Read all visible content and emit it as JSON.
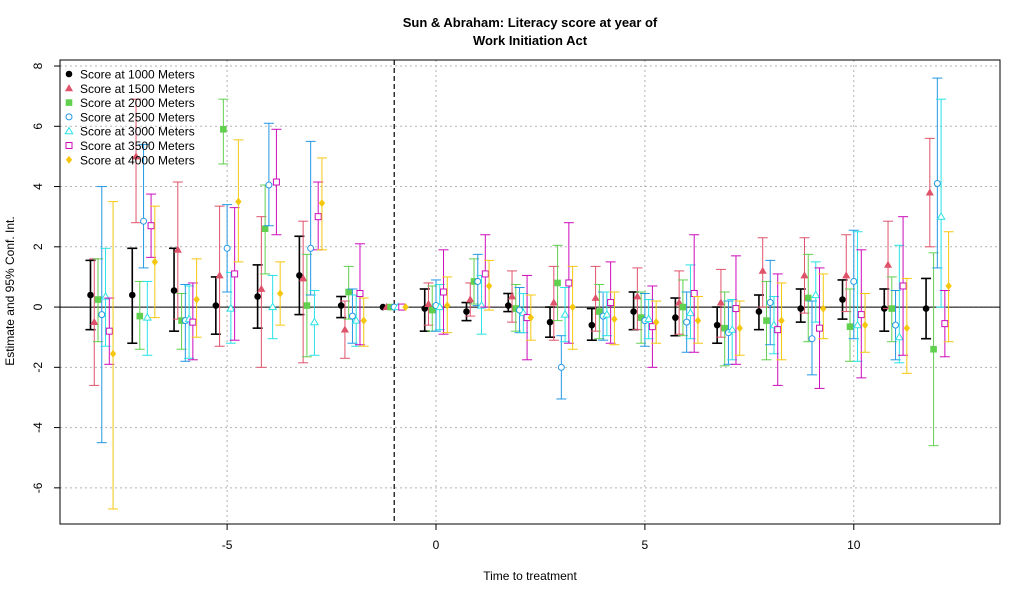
{
  "chart_data": {
    "type": "scatter",
    "title_line1": "Sun & Abraham: Literacy score at year of",
    "title_line2": "Work Initiation Act",
    "xlabel": "Time to treatment",
    "ylabel": "Estimate and 95% Conf. Int.",
    "xlim": [
      -9,
      13.5
    ],
    "ylim": [
      -7.2,
      8.2
    ],
    "x_ticks": [
      -5,
      0,
      5,
      10
    ],
    "x_tick_labels": [
      "-5",
      "0",
      "5",
      "10"
    ],
    "y_ticks": [
      -6,
      -4,
      -2,
      0,
      2,
      4,
      6,
      8
    ],
    "y_tick_labels": [
      "-6",
      "-4",
      "-2",
      "0",
      "2",
      "4",
      "6",
      "8"
    ],
    "reference_vline": -1,
    "reference_hline": 0,
    "grid": true,
    "legend_position": "top-left",
    "series": [
      {
        "name": "Score at 1000 Meters",
        "color": "#000000",
        "marker": "circle-filled",
        "x": [
          -8,
          -7,
          -6,
          -5,
          -4,
          -3,
          -2,
          -1,
          0,
          1,
          2,
          3,
          4,
          5,
          6,
          7,
          8,
          9,
          10,
          11,
          12
        ],
        "y": [
          0.4,
          0.4,
          0.55,
          0.05,
          0.35,
          1.05,
          0.05,
          0,
          -0.05,
          -0.15,
          0.05,
          -0.5,
          -0.6,
          -0.15,
          -0.35,
          -0.6,
          -0.15,
          -0.05,
          0.25,
          -0.05,
          -0.05
        ],
        "lo": [
          -0.75,
          -1.2,
          -0.8,
          -0.9,
          -0.7,
          -0.25,
          -0.35,
          0,
          -0.8,
          -0.45,
          -0.15,
          -1.0,
          -1.1,
          -0.75,
          -0.95,
          -1.2,
          -0.75,
          -0.5,
          -0.4,
          -0.8,
          -1.05
        ],
        "hi": [
          1.55,
          1.95,
          1.95,
          1.0,
          1.4,
          2.35,
          0.35,
          0,
          0.6,
          0.15,
          0.45,
          0.0,
          -0.05,
          0.5,
          0.3,
          0.0,
          0.4,
          0.6,
          0.9,
          0.6,
          0.95
        ]
      },
      {
        "name": "Score at 1500 Meters",
        "color": "#df536b",
        "marker": "triangle-filled",
        "x": [
          -8,
          -7,
          -6,
          -5,
          -4,
          -3,
          -2,
          -1,
          0,
          1,
          2,
          3,
          4,
          5,
          6,
          7,
          8,
          9,
          10,
          11,
          12
        ],
        "y": [
          -0.5,
          5.0,
          1.9,
          1.05,
          0.6,
          0.95,
          -0.75,
          0,
          0.1,
          0.25,
          0.35,
          0.15,
          0.3,
          0.35,
          0.15,
          0.15,
          1.2,
          1.05,
          1.05,
          1.4,
          3.8
        ],
        "lo": [
          -2.6,
          2.8,
          -0.4,
          -1.3,
          -2.0,
          -1.85,
          -1.7,
          0,
          -0.6,
          -0.3,
          -0.5,
          -1.1,
          -0.8,
          -0.75,
          -0.9,
          -1.0,
          0.0,
          -0.2,
          -0.15,
          -0.05,
          2.0
        ],
        "hi": [
          1.6,
          6.9,
          4.15,
          3.35,
          3.0,
          2.85,
          0.2,
          0,
          0.8,
          0.8,
          1.2,
          1.35,
          1.35,
          1.3,
          1.2,
          1.25,
          2.3,
          2.3,
          2.4,
          2.85,
          5.6
        ]
      },
      {
        "name": "Score at 2000 Meters",
        "color": "#61d04f",
        "marker": "square-filled",
        "x": [
          -8,
          -7,
          -6,
          -5,
          -4,
          -3,
          -2,
          -1,
          0,
          1,
          2,
          3,
          4,
          5,
          6,
          7,
          8,
          9,
          10,
          11,
          12
        ],
        "y": [
          0.25,
          -0.3,
          -0.45,
          5.9,
          2.6,
          0.05,
          0.5,
          0,
          -0.1,
          0.85,
          -0.05,
          0.8,
          -0.15,
          -0.35,
          0.0,
          -0.7,
          -0.45,
          0.3,
          -0.65,
          -0.05,
          -1.4
        ],
        "lo": [
          -1.15,
          -1.4,
          -1.4,
          4.75,
          1.1,
          -1.65,
          -0.4,
          0,
          -0.8,
          0.1,
          -0.8,
          -0.45,
          -1.05,
          -1.2,
          -0.95,
          -1.95,
          -1.75,
          -1.15,
          -1.8,
          -1.15,
          -4.6
        ],
        "hi": [
          1.6,
          0.85,
          0.45,
          6.9,
          4.05,
          1.75,
          1.35,
          0,
          0.7,
          1.6,
          0.75,
          2.05,
          0.75,
          0.5,
          0.9,
          0.5,
          0.85,
          1.75,
          0.6,
          1.0,
          1.8
        ]
      },
      {
        "name": "Score at 2500 Meters",
        "color": "#2297e6",
        "marker": "circle-open",
        "x": [
          -8,
          -7,
          -6,
          -5,
          -4,
          -3,
          -2,
          -1,
          0,
          1,
          2,
          3,
          4,
          5,
          6,
          7,
          8,
          9,
          10,
          11,
          12
        ],
        "y": [
          -0.25,
          2.85,
          -0.45,
          1.95,
          4.05,
          1.95,
          -0.3,
          0,
          0.05,
          0.85,
          -0.1,
          -2.0,
          -0.3,
          -0.45,
          -0.5,
          -0.85,
          0.15,
          -1.05,
          0.85,
          -0.6,
          4.1
        ],
        "lo": [
          -4.5,
          1.3,
          -1.8,
          0.5,
          2.7,
          0.4,
          -1.2,
          0,
          -0.8,
          0.05,
          -0.85,
          -3.05,
          -1.1,
          -1.3,
          -1.5,
          -1.9,
          -1.25,
          -2.25,
          -1.05,
          -1.75,
          1.3
        ],
        "hi": [
          4.0,
          5.4,
          0.75,
          3.4,
          6.1,
          5.5,
          0.6,
          0,
          0.9,
          1.75,
          0.65,
          -0.95,
          0.5,
          0.45,
          0.5,
          0.2,
          1.55,
          0.2,
          2.55,
          0.55,
          7.6
        ]
      },
      {
        "name": "Score at 3000 Meters",
        "color": "#28e2e5",
        "marker": "triangle-open",
        "x": [
          -8,
          -7,
          -6,
          -5,
          -4,
          -3,
          -2,
          -1,
          0,
          1,
          2,
          3,
          4,
          5,
          6,
          7,
          8,
          9,
          10,
          11,
          12
        ],
        "y": [
          0.35,
          -0.35,
          -0.4,
          -0.05,
          0.0,
          -0.5,
          -0.45,
          0,
          0.0,
          0.05,
          -0.2,
          -0.25,
          -0.25,
          -0.4,
          -0.2,
          -0.75,
          -0.6,
          0.4,
          -0.6,
          -1.0,
          3.0
        ],
        "lo": [
          -1.3,
          -1.6,
          -1.7,
          -1.2,
          -1.05,
          -1.6,
          -1.3,
          0,
          -0.75,
          -0.9,
          -0.85,
          -1.15,
          -0.95,
          -1.05,
          -1.05,
          -1.75,
          -1.55,
          -0.5,
          -1.8,
          -1.85,
          0.0
        ],
        "hi": [
          1.95,
          0.85,
          0.7,
          1.15,
          1.05,
          0.55,
          0.4,
          0,
          0.75,
          1.05,
          0.45,
          0.65,
          0.5,
          0.25,
          1.4,
          0.25,
          0.35,
          1.5,
          2.5,
          2.05,
          6.9
        ]
      },
      {
        "name": "Score at 3500 Meters",
        "color": "#cd0bbc",
        "marker": "square-open",
        "x": [
          -8,
          -7,
          -6,
          -5,
          -4,
          -3,
          -2,
          -1,
          0,
          1,
          2,
          3,
          4,
          5,
          6,
          7,
          8,
          9,
          10,
          11,
          12
        ],
        "y": [
          -0.8,
          2.7,
          -0.5,
          1.1,
          4.15,
          3.0,
          0.45,
          0,
          0.5,
          1.1,
          -0.35,
          0.8,
          0.15,
          -0.65,
          0.45,
          -0.05,
          -0.75,
          -0.7,
          -0.25,
          0.7,
          -0.55
        ],
        "lo": [
          -1.9,
          1.65,
          -1.75,
          -1.1,
          2.4,
          1.9,
          -1.25,
          0,
          -0.9,
          0.0,
          -1.75,
          -1.2,
          -1.2,
          -2.0,
          -1.5,
          -1.9,
          -2.6,
          -2.7,
          -2.35,
          -1.6,
          -1.65
        ],
        "hi": [
          0.3,
          3.75,
          0.8,
          3.3,
          5.9,
          4.15,
          2.1,
          0,
          1.9,
          2.4,
          1.05,
          2.8,
          1.5,
          0.7,
          2.4,
          1.7,
          1.1,
          1.3,
          1.9,
          3.0,
          0.55
        ]
      },
      {
        "name": "Score at 4000 Meters",
        "color": "#f5c710",
        "marker": "diamond-filled",
        "x": [
          -8,
          -7,
          -6,
          -5,
          -4,
          -3,
          -2,
          -1,
          0,
          1,
          2,
          3,
          4,
          5,
          6,
          7,
          8,
          9,
          10,
          11,
          12
        ],
        "y": [
          -1.55,
          1.5,
          0.25,
          3.5,
          0.45,
          3.45,
          -0.45,
          0,
          0.05,
          0.7,
          -0.35,
          0.0,
          -0.4,
          -0.5,
          -0.45,
          -0.7,
          -0.45,
          -0.05,
          -0.6,
          -0.7,
          0.7
        ],
        "lo": [
          -6.7,
          -0.35,
          -1.0,
          1.5,
          -0.6,
          1.9,
          -1.3,
          0,
          -0.85,
          -0.1,
          -1.1,
          -1.4,
          -1.25,
          -1.2,
          -1.2,
          -1.6,
          -1.75,
          -1.05,
          -1.5,
          -2.2,
          -1.15
        ],
        "hi": [
          3.5,
          3.35,
          1.6,
          5.55,
          1.5,
          4.95,
          0.3,
          0,
          1.0,
          1.55,
          0.4,
          1.35,
          0.5,
          0.2,
          0.35,
          0.2,
          0.8,
          1.1,
          0.45,
          0.95,
          2.5
        ]
      }
    ]
  }
}
